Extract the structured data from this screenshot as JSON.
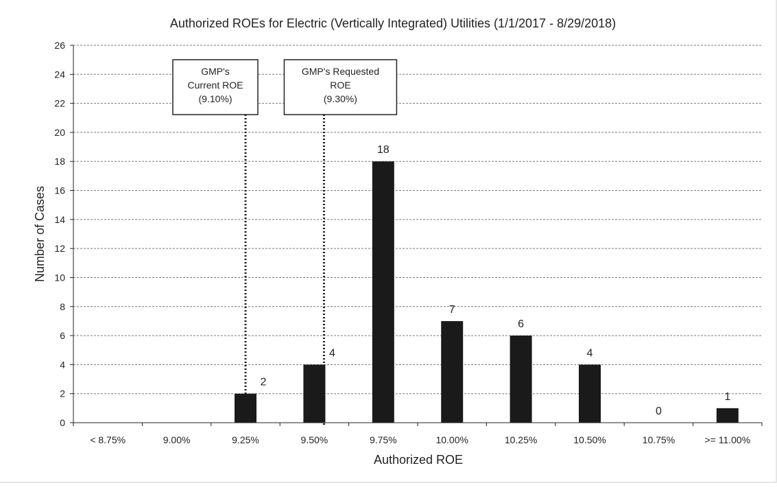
{
  "chart_data": {
    "type": "bar",
    "title": "Authorized ROEs for Electric (Vertically Integrated) Utilities (1/1/2017 - 8/29/2018)",
    "xlabel": "Authorized ROE",
    "ylabel": "Number of Cases",
    "ylim": [
      0,
      26
    ],
    "yticks": [
      0,
      2,
      4,
      6,
      8,
      10,
      12,
      14,
      16,
      18,
      20,
      22,
      24,
      26
    ],
    "grid": true,
    "categories": [
      "< 8.75%",
      "9.00%",
      "9.25%",
      "9.50%",
      "9.75%",
      "10.00%",
      "10.25%",
      "10.50%",
      "10.75%",
      ">= 11.00%"
    ],
    "values": [
      0,
      0,
      2,
      4,
      18,
      7,
      6,
      4,
      0,
      1
    ],
    "data_labels": [
      null,
      null,
      "2",
      "4",
      "18",
      "7",
      "6",
      "4",
      "0",
      "1"
    ],
    "bar_color": "#1a1a1a",
    "annotations": [
      {
        "lines": [
          "GMP's",
          "Current ROE",
          "(9.10%)"
        ],
        "roe": 9.1
      },
      {
        "lines": [
          "GMP's  Requested",
          "ROE",
          "(9.30%)"
        ],
        "roe": 9.3
      }
    ]
  }
}
